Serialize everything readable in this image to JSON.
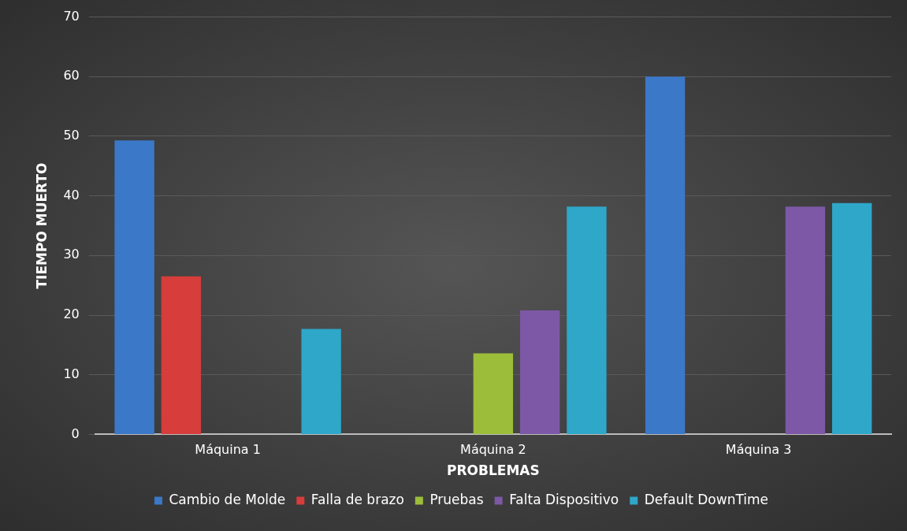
{
  "chart_data": {
    "type": "bar",
    "xlabel": "PROBLEMAS",
    "ylabel": "TIEMPO MUERTO",
    "categories": [
      "Máquina 1",
      "Máquina 2",
      "Máquina 3"
    ],
    "series": [
      {
        "name": "Cambio de Molde",
        "color": "#3b78c8",
        "values": [
          49.3,
          null,
          60
        ]
      },
      {
        "name": "Falla de brazo",
        "color": "#d63d3b",
        "values": [
          26.5,
          null,
          null
        ]
      },
      {
        "name": "Pruebas",
        "color": "#9cbd3a",
        "values": [
          null,
          13.6,
          null
        ]
      },
      {
        "name": "Falta Dispositivo",
        "color": "#7d58a6",
        "values": [
          null,
          20.8,
          38.2
        ]
      },
      {
        "name": "Default DownTime",
        "color": "#2ea7c9",
        "values": [
          17.7,
          38.2,
          38.8
        ]
      }
    ],
    "ylim": [
      0,
      70
    ],
    "yticks": [
      0,
      10,
      20,
      30,
      40,
      50,
      60,
      70
    ],
    "grid": "y",
    "legend": "bottom"
  }
}
